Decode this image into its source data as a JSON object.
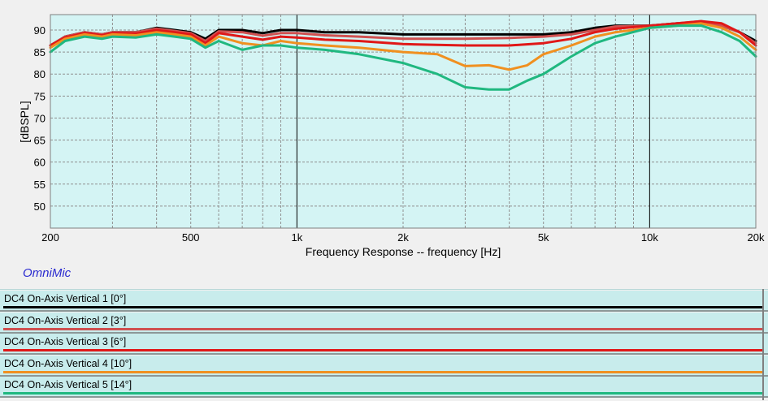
{
  "brand": "OmniMic",
  "colors": {
    "plot_background": "#d4f4f4",
    "grid": "#909090",
    "decade_line": "#000000"
  },
  "chart_data": {
    "type": "line",
    "title": "",
    "xlabel": "Frequency Response -- frequency [Hz]",
    "ylabel": "[dBSPL]",
    "x_scale": "log",
    "xlim": [
      200,
      20000
    ],
    "ylim": [
      45,
      93.5
    ],
    "grid": true,
    "x_tick_labels": [
      {
        "value": 200,
        "label": "200"
      },
      {
        "value": 500,
        "label": "500"
      },
      {
        "value": 1000,
        "label": "1k"
      },
      {
        "value": 2000,
        "label": "2k"
      },
      {
        "value": 5000,
        "label": "5k"
      },
      {
        "value": 10000,
        "label": "10k"
      },
      {
        "value": 20000,
        "label": "20k"
      }
    ],
    "y_ticks": [
      50,
      55,
      60,
      65,
      70,
      75,
      80,
      85,
      90
    ],
    "series": [
      {
        "name": "DC4 On-Axis Vertical 1 [0°]",
        "color": "#000000",
        "points": [
          [
            200,
            86.5
          ],
          [
            220,
            88.5
          ],
          [
            250,
            89.5
          ],
          [
            280,
            89
          ],
          [
            300,
            89.5
          ],
          [
            350,
            89.5
          ],
          [
            400,
            90.5
          ],
          [
            450,
            90
          ],
          [
            500,
            89.5
          ],
          [
            550,
            88
          ],
          [
            600,
            90
          ],
          [
            700,
            90
          ],
          [
            800,
            89.3
          ],
          [
            900,
            90
          ],
          [
            1000,
            90
          ],
          [
            1200,
            89.5
          ],
          [
            1500,
            89.5
          ],
          [
            2000,
            89
          ],
          [
            3000,
            89
          ],
          [
            4000,
            89
          ],
          [
            5000,
            89
          ],
          [
            6000,
            89.5
          ],
          [
            7000,
            90.5
          ],
          [
            8000,
            91
          ],
          [
            10000,
            91
          ],
          [
            12000,
            91.5
          ],
          [
            14000,
            91.5
          ],
          [
            16000,
            91
          ],
          [
            18000,
            89.5
          ],
          [
            20000,
            87.5
          ]
        ]
      },
      {
        "name": "DC4 On-Axis Vertical 2 [3°]",
        "color": "#d05050",
        "points": [
          [
            200,
            86.5
          ],
          [
            220,
            88.5
          ],
          [
            250,
            89.5
          ],
          [
            280,
            89
          ],
          [
            300,
            89.5
          ],
          [
            350,
            89.5
          ],
          [
            400,
            90.3
          ],
          [
            450,
            89.8
          ],
          [
            500,
            89.3
          ],
          [
            550,
            87.5
          ],
          [
            600,
            89.7
          ],
          [
            700,
            89.5
          ],
          [
            800,
            88.7
          ],
          [
            900,
            89.3
          ],
          [
            1000,
            89.3
          ],
          [
            1200,
            88.8
          ],
          [
            1500,
            88.5
          ],
          [
            2000,
            88
          ],
          [
            3000,
            88
          ],
          [
            4000,
            88.2
          ],
          [
            5000,
            88.5
          ],
          [
            6000,
            89
          ],
          [
            7000,
            90
          ],
          [
            8000,
            90.8
          ],
          [
            10000,
            91
          ],
          [
            12000,
            91.5
          ],
          [
            14000,
            92
          ],
          [
            16000,
            91
          ],
          [
            18000,
            89.5
          ],
          [
            20000,
            87
          ]
        ]
      },
      {
        "name": "DC4 On-Axis Vertical 3 [6°]",
        "color": "#e01818",
        "points": [
          [
            200,
            86.5
          ],
          [
            220,
            88.3
          ],
          [
            250,
            89.3
          ],
          [
            280,
            88.8
          ],
          [
            300,
            89.3
          ],
          [
            350,
            89.2
          ],
          [
            400,
            90
          ],
          [
            450,
            89.5
          ],
          [
            500,
            89
          ],
          [
            550,
            87
          ],
          [
            600,
            89.3
          ],
          [
            700,
            88.5
          ],
          [
            800,
            87.8
          ],
          [
            900,
            88.5
          ],
          [
            1000,
            88.3
          ],
          [
            1200,
            87.8
          ],
          [
            1500,
            87.5
          ],
          [
            2000,
            86.8
          ],
          [
            3000,
            86.5
          ],
          [
            4000,
            86.5
          ],
          [
            5000,
            87
          ],
          [
            6000,
            88
          ],
          [
            7000,
            89.5
          ],
          [
            8000,
            90.3
          ],
          [
            10000,
            91
          ],
          [
            12000,
            91.5
          ],
          [
            14000,
            92
          ],
          [
            16000,
            91.5
          ],
          [
            18000,
            89.5
          ],
          [
            20000,
            86.5
          ]
        ]
      },
      {
        "name": "DC4 On-Axis Vertical 4 [10°]",
        "color": "#f09020",
        "points": [
          [
            200,
            86
          ],
          [
            220,
            88
          ],
          [
            250,
            89
          ],
          [
            280,
            88.5
          ],
          [
            300,
            89
          ],
          [
            350,
            88.8
          ],
          [
            400,
            89.5
          ],
          [
            450,
            89
          ],
          [
            500,
            88.5
          ],
          [
            550,
            86.5
          ],
          [
            600,
            88.5
          ],
          [
            700,
            87
          ],
          [
            800,
            86.5
          ],
          [
            900,
            87.5
          ],
          [
            1000,
            87
          ],
          [
            1200,
            86.5
          ],
          [
            1500,
            86
          ],
          [
            2000,
            85
          ],
          [
            2500,
            84.5
          ],
          [
            3000,
            81.8
          ],
          [
            3500,
            82
          ],
          [
            4000,
            81
          ],
          [
            4500,
            82
          ],
          [
            5000,
            84.5
          ],
          [
            6000,
            86.5
          ],
          [
            7000,
            88.5
          ],
          [
            8000,
            89.5
          ],
          [
            10000,
            90.5
          ],
          [
            12000,
            91
          ],
          [
            14000,
            91.5
          ],
          [
            16000,
            90.5
          ],
          [
            18000,
            88.5
          ],
          [
            20000,
            85.5
          ]
        ]
      },
      {
        "name": "DC4 On-Axis Vertical 5 [14°]",
        "color": "#20b880",
        "points": [
          [
            200,
            85
          ],
          [
            220,
            87.5
          ],
          [
            250,
            88.5
          ],
          [
            280,
            88
          ],
          [
            300,
            88.5
          ],
          [
            350,
            88.3
          ],
          [
            400,
            89
          ],
          [
            450,
            88.5
          ],
          [
            500,
            88
          ],
          [
            550,
            86
          ],
          [
            600,
            87.5
          ],
          [
            700,
            85.5
          ],
          [
            800,
            86.5
          ],
          [
            900,
            86.5
          ],
          [
            1000,
            86
          ],
          [
            1200,
            85.5
          ],
          [
            1500,
            84.5
          ],
          [
            2000,
            82.5
          ],
          [
            2500,
            80
          ],
          [
            3000,
            77
          ],
          [
            3500,
            76.5
          ],
          [
            4000,
            76.5
          ],
          [
            4500,
            78.5
          ],
          [
            5000,
            80
          ],
          [
            6000,
            84
          ],
          [
            7000,
            87
          ],
          [
            8000,
            88.5
          ],
          [
            10000,
            90.5
          ],
          [
            12000,
            91
          ],
          [
            14000,
            91
          ],
          [
            16000,
            89.5
          ],
          [
            18000,
            87.5
          ],
          [
            20000,
            84
          ]
        ]
      }
    ]
  }
}
